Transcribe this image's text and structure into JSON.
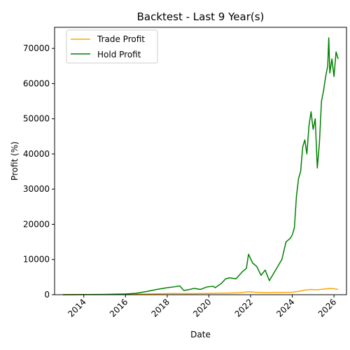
{
  "chart_data": {
    "type": "line",
    "title": "Backtest - Last 9 Year(s)",
    "xlabel": "Date",
    "ylabel": "Profit (%)",
    "xlim": [
      2012.6,
      2026.6
    ],
    "ylim": [
      0,
      76000
    ],
    "x_ticks": [
      2014,
      2016,
      2018,
      2020,
      2022,
      2024,
      2026
    ],
    "y_ticks": [
      0,
      10000,
      20000,
      30000,
      40000,
      50000,
      60000,
      70000
    ],
    "grid": false,
    "legend_position": "top-left",
    "series": [
      {
        "name": "Trade Profit",
        "color": "#ffa500",
        "x": [
          2013.0,
          2014.0,
          2015.0,
          2016.0,
          2016.5,
          2017.0,
          2017.5,
          2018.0,
          2018.5,
          2019.0,
          2019.5,
          2020.0,
          2020.5,
          2021.0,
          2021.5,
          2021.9,
          2022.2,
          2022.5,
          2022.8,
          2023.0,
          2023.5,
          2024.0,
          2024.3,
          2024.6,
          2024.9,
          2025.2,
          2025.5,
          2025.8,
          2026.0,
          2026.2
        ],
        "y": [
          0,
          30,
          60,
          100,
          150,
          200,
          260,
          320,
          330,
          300,
          320,
          370,
          420,
          480,
          550,
          850,
          700,
          620,
          560,
          600,
          650,
          700,
          950,
          1300,
          1500,
          1400,
          1600,
          1800,
          1700,
          1500
        ]
      },
      {
        "name": "Hold Profit",
        "color": "#008000",
        "x": [
          2013.0,
          2014.0,
          2015.0,
          2016.0,
          2016.5,
          2017.0,
          2017.5,
          2018.0,
          2018.3,
          2018.6,
          2018.8,
          2019.0,
          2019.3,
          2019.6,
          2019.9,
          2020.2,
          2020.3,
          2020.6,
          2020.8,
          2021.0,
          2021.3,
          2021.6,
          2021.8,
          2021.9,
          2022.1,
          2022.3,
          2022.5,
          2022.7,
          2022.9,
          2023.1,
          2023.3,
          2023.5,
          2023.7,
          2023.9,
          2024.0,
          2024.1,
          2024.2,
          2024.3,
          2024.4,
          2024.5,
          2024.6,
          2024.7,
          2024.8,
          2024.9,
          2025.0,
          2025.1,
          2025.2,
          2025.3,
          2025.4,
          2025.5,
          2025.6,
          2025.7,
          2025.75,
          2025.8,
          2025.9,
          2026.0,
          2026.1,
          2026.2
        ],
        "y": [
          0,
          50,
          80,
          200,
          400,
          900,
          1500,
          2000,
          2200,
          2500,
          1200,
          1400,
          1800,
          1500,
          2200,
          2400,
          2000,
          3200,
          4500,
          4800,
          4500,
          6500,
          7500,
          11500,
          9000,
          8000,
          5500,
          7000,
          4000,
          6000,
          8000,
          10000,
          15000,
          16000,
          17000,
          19000,
          28000,
          33000,
          35000,
          42000,
          44000,
          40000,
          48000,
          52000,
          47000,
          50000,
          36000,
          43000,
          55000,
          58000,
          62000,
          65000,
          73000,
          63000,
          67000,
          62000,
          69000,
          67000
        ]
      }
    ]
  }
}
